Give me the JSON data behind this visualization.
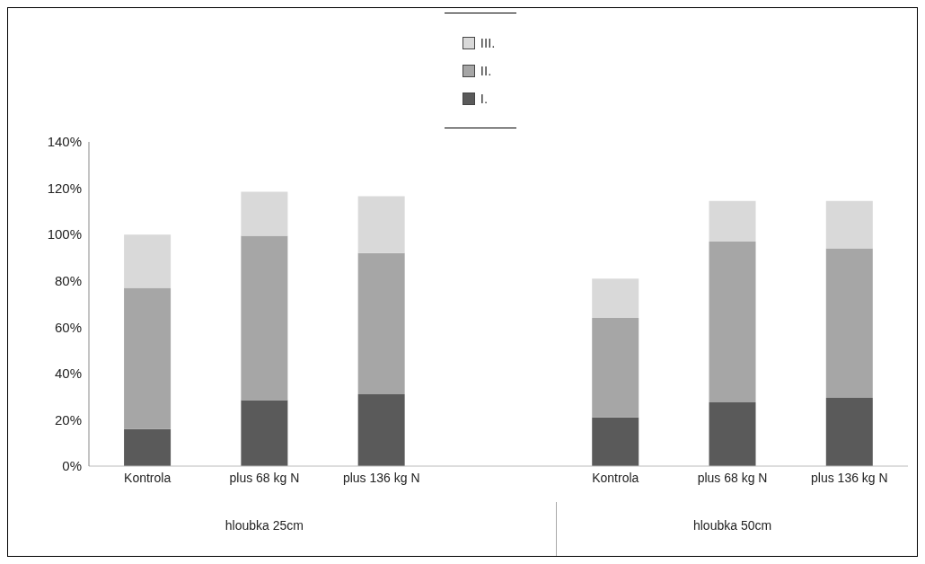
{
  "chart_data": {
    "type": "bar",
    "stacked": true,
    "categories": [
      "Kontrola",
      "plus 68 kg N",
      "plus 136 kg N",
      null,
      "Kontrola",
      "plus 68 kg N",
      "plus 136 kg N"
    ],
    "series": [
      {
        "name": "I.",
        "color": "#5a5a5a",
        "values": [
          16,
          28.5,
          31,
          null,
          21,
          27.5,
          29.5
        ]
      },
      {
        "name": "II.",
        "color": "#a6a6a6",
        "values": [
          61,
          71,
          61,
          null,
          43,
          69.5,
          64.5
        ]
      },
      {
        "name": "III.",
        "color": "#d9d9d9",
        "values": [
          23,
          19,
          24.5,
          null,
          17,
          17.5,
          20.5
        ]
      }
    ],
    "ylim": [
      0,
      140
    ],
    "yticks": [
      {
        "value": 0,
        "label": "0%"
      },
      {
        "value": 20,
        "label": "20%"
      },
      {
        "value": 40,
        "label": "40%"
      },
      {
        "value": 60,
        "label": "60%"
      },
      {
        "value": 80,
        "label": "80%"
      },
      {
        "value": 100,
        "label": "100%"
      },
      {
        "value": 120,
        "label": "120%"
      },
      {
        "value": 140,
        "label": "140%"
      }
    ],
    "grid": false,
    "legend": "top",
    "annotations": [
      "hloubka 25cm",
      "hloubka 50cm"
    ]
  }
}
